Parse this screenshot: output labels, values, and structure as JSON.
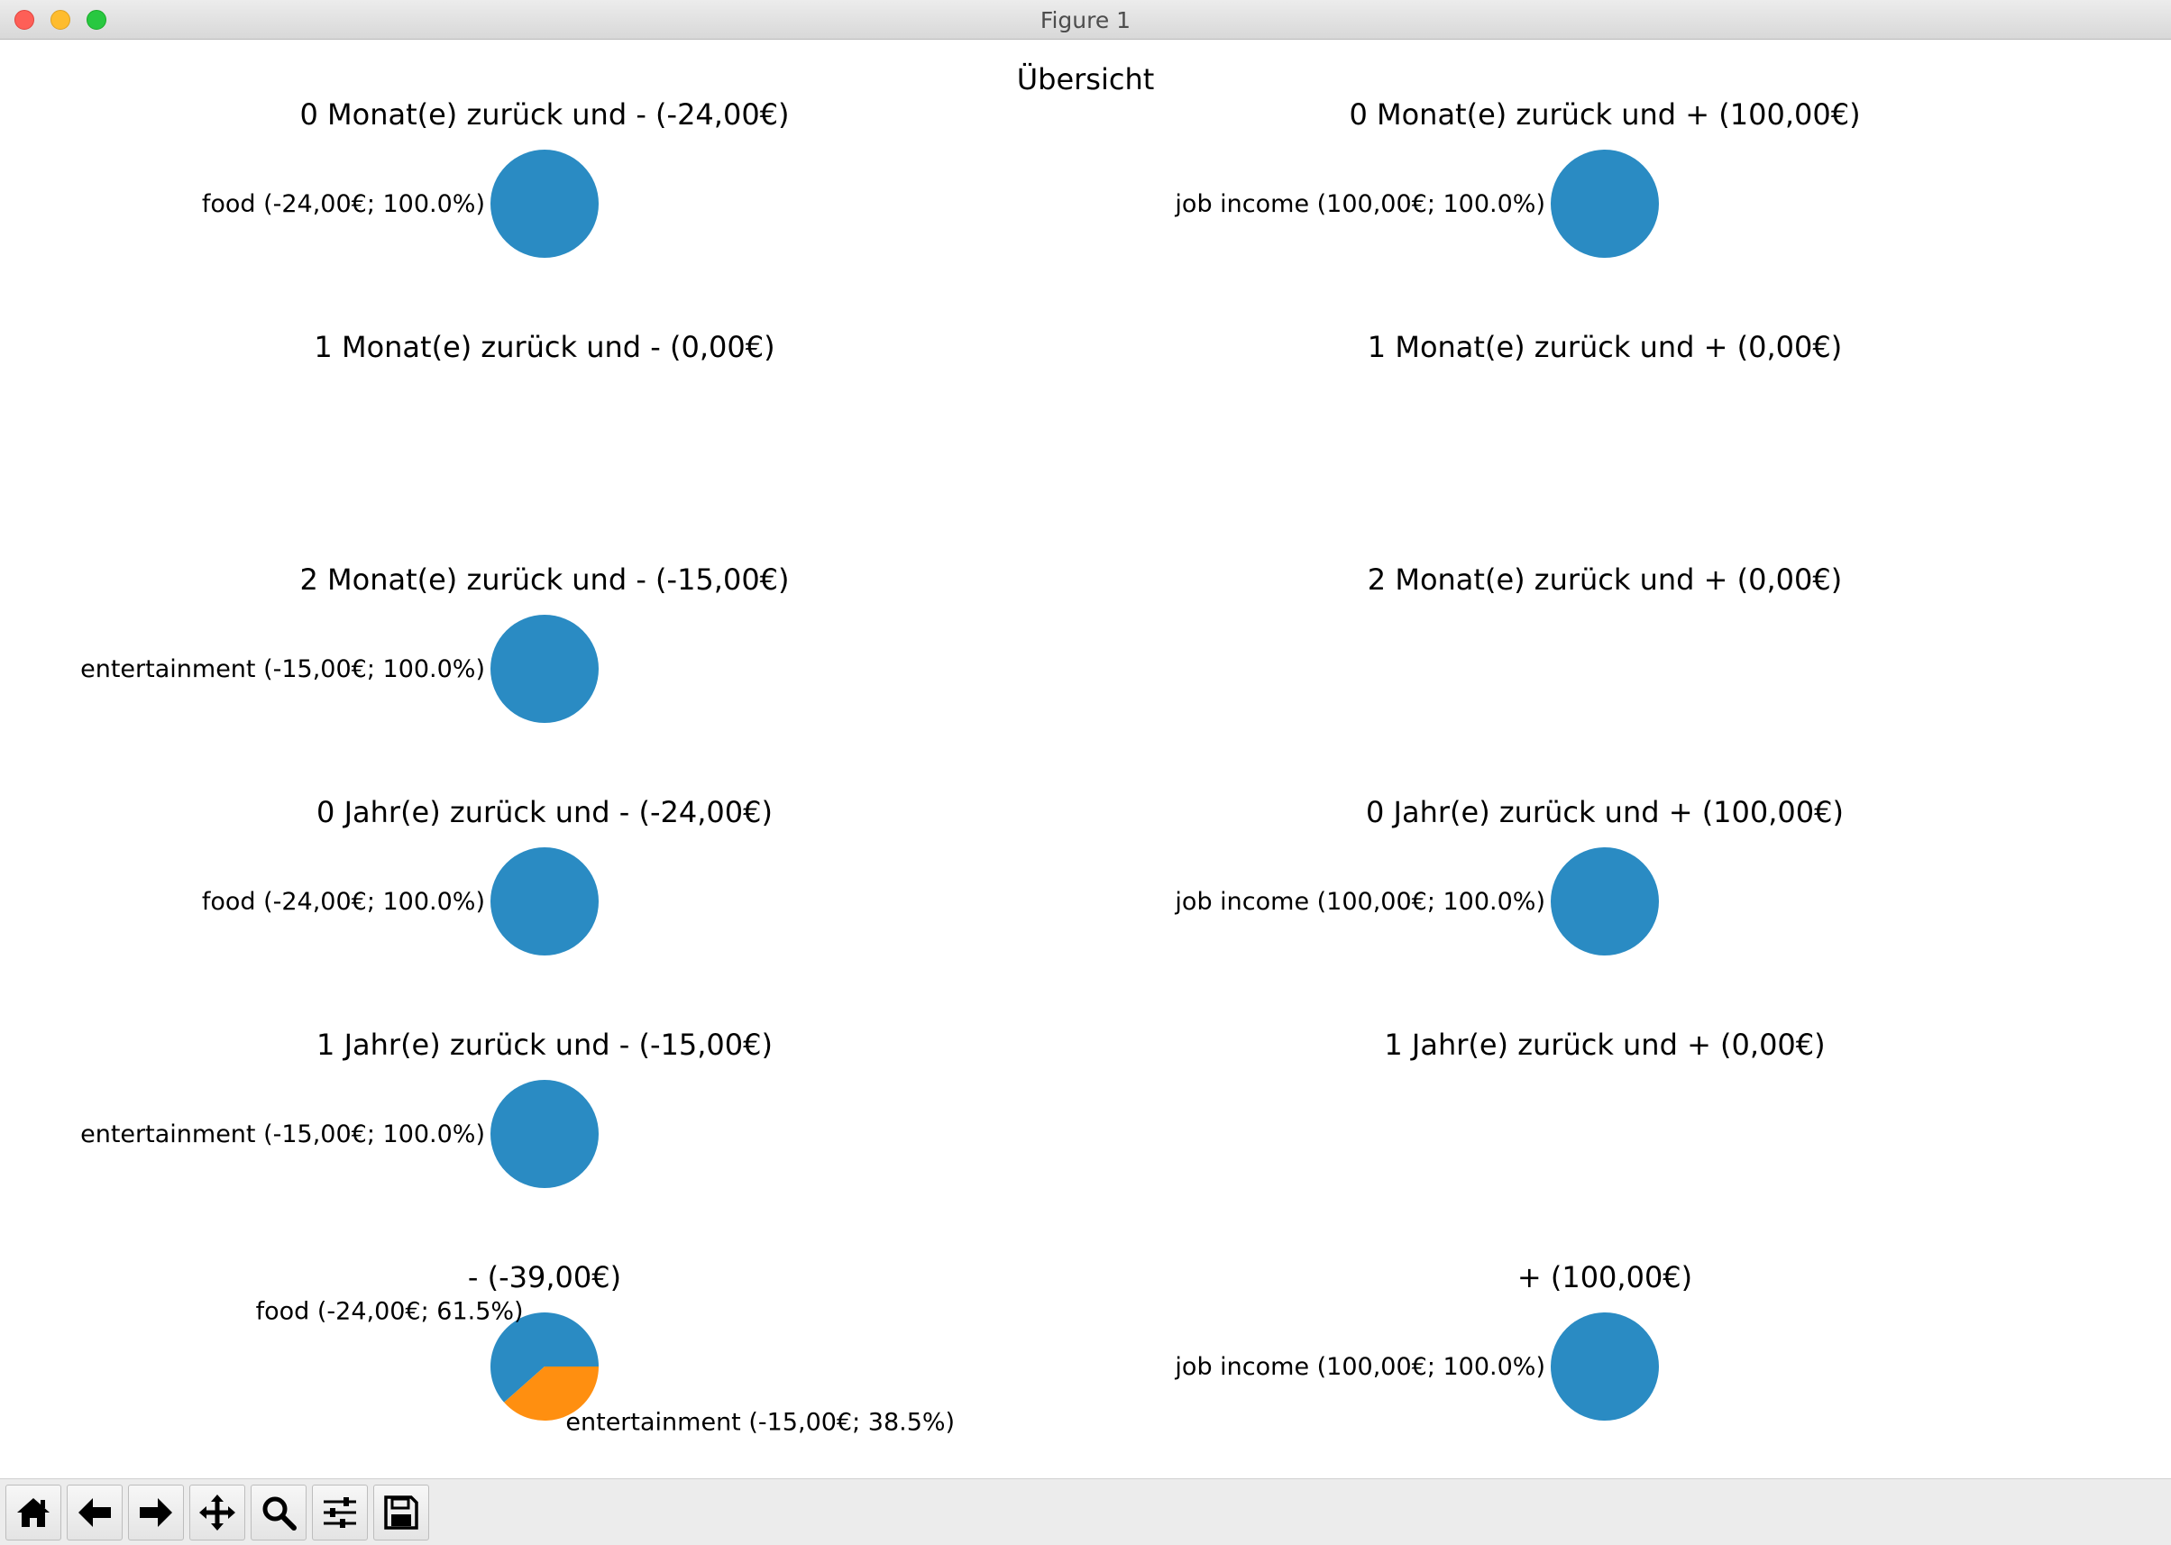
{
  "window": {
    "title": "Figure 1"
  },
  "figure": {
    "suptitle": "Übersicht"
  },
  "colors": {
    "blue": "#2a8bc3",
    "orange": "#ff8f10"
  },
  "toolbar": {
    "buttons": [
      {
        "name": "home-button",
        "icon": "home-icon"
      },
      {
        "name": "back-button",
        "icon": "arrow-left-icon"
      },
      {
        "name": "forward-button",
        "icon": "arrow-right-icon"
      },
      {
        "name": "pan-button",
        "icon": "move-icon"
      },
      {
        "name": "zoom-button",
        "icon": "magnifier-icon"
      },
      {
        "name": "configure-subplots-button",
        "icon": "sliders-icon"
      },
      {
        "name": "save-button",
        "icon": "floppy-disk-icon"
      }
    ]
  },
  "chart_data": [
    {
      "type": "pie",
      "title": "0  Monat(e) zurück und - (-24,00€)",
      "slices": [
        {
          "label": "food (-24,00€; 100.0%)",
          "value": 24,
          "color": "#2a8bc3"
        }
      ]
    },
    {
      "type": "pie",
      "title": "0  Monat(e) zurück und + (100,00€)",
      "slices": [
        {
          "label": "job income (100,00€; 100.0%)",
          "value": 100,
          "color": "#2a8bc3"
        }
      ]
    },
    {
      "type": "pie",
      "title": "1  Monat(e) zurück und - (0,00€)",
      "slices": []
    },
    {
      "type": "pie",
      "title": "1  Monat(e) zurück und + (0,00€)",
      "slices": []
    },
    {
      "type": "pie",
      "title": "2  Monat(e) zurück und - (-15,00€)",
      "slices": [
        {
          "label": "entertainment (-15,00€; 100.0%)",
          "value": 15,
          "color": "#2a8bc3"
        }
      ]
    },
    {
      "type": "pie",
      "title": "2  Monat(e) zurück und + (0,00€)",
      "slices": []
    },
    {
      "type": "pie",
      "title": "0  Jahr(e) zurück und - (-24,00€)",
      "slices": [
        {
          "label": "food (-24,00€; 100.0%)",
          "value": 24,
          "color": "#2a8bc3"
        }
      ]
    },
    {
      "type": "pie",
      "title": "0  Jahr(e) zurück und + (100,00€)",
      "slices": [
        {
          "label": "job income (100,00€; 100.0%)",
          "value": 100,
          "color": "#2a8bc3"
        }
      ]
    },
    {
      "type": "pie",
      "title": "1  Jahr(e) zurück und - (-15,00€)",
      "slices": [
        {
          "label": "entertainment (-15,00€; 100.0%)",
          "value": 15,
          "color": "#2a8bc3"
        }
      ]
    },
    {
      "type": "pie",
      "title": "1  Jahr(e) zurück und + (0,00€)",
      "slices": []
    },
    {
      "type": "pie",
      "title": "- (-39,00€)",
      "slices": [
        {
          "label": "food (-24,00€; 61.5%)",
          "value": 24,
          "color": "#2a8bc3"
        },
        {
          "label": "entertainment (-15,00€; 38.5%)",
          "value": 15,
          "color": "#ff8f10"
        }
      ]
    },
    {
      "type": "pie",
      "title": "+ (100,00€)",
      "slices": [
        {
          "label": "job income (100,00€; 100.0%)",
          "value": 100,
          "color": "#2a8bc3"
        }
      ]
    }
  ]
}
